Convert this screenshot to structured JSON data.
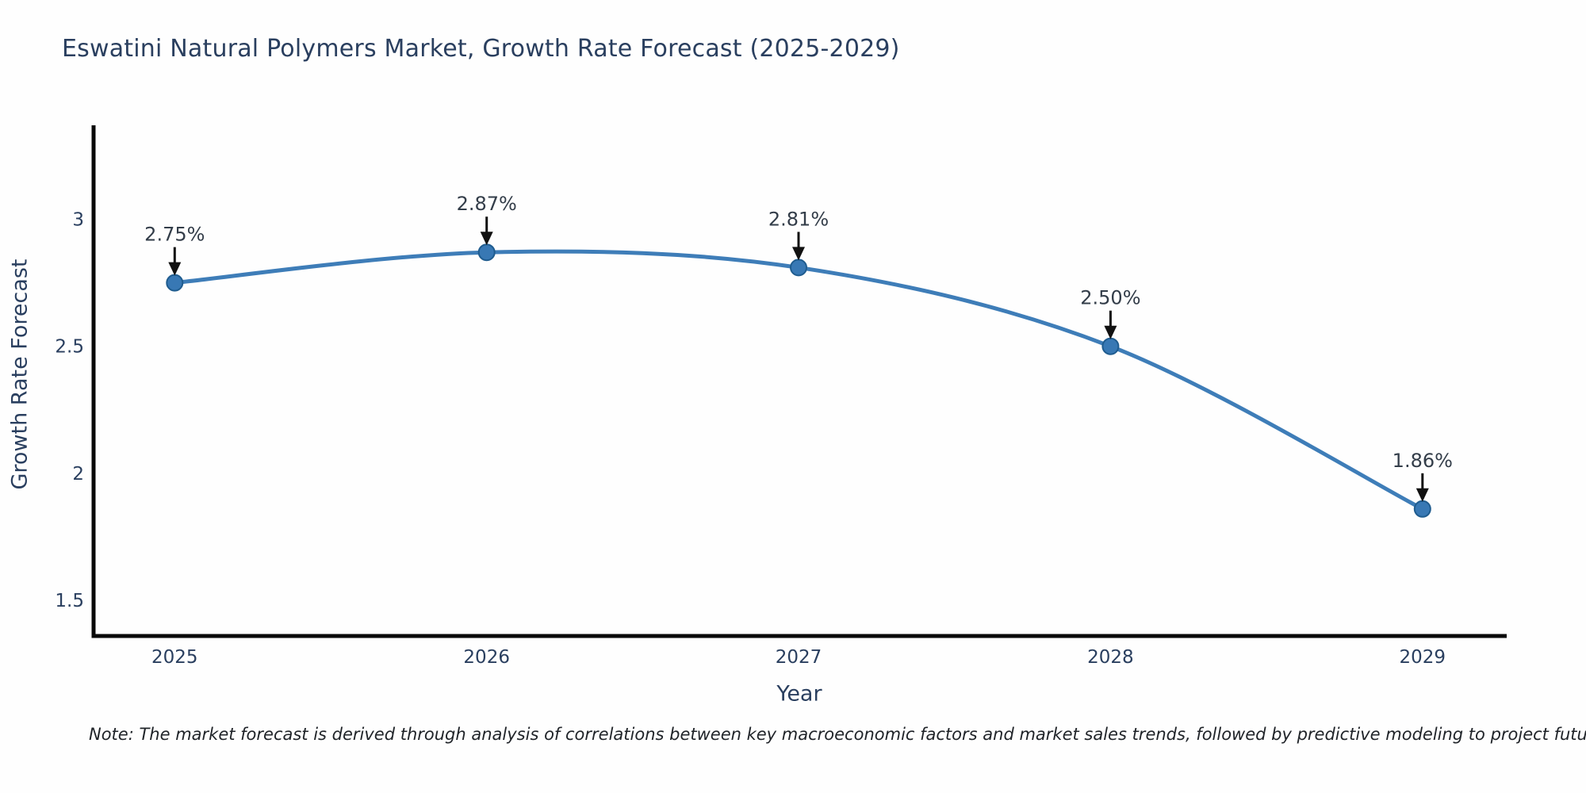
{
  "page": {
    "background": "#fefefe"
  },
  "chart_data": {
    "type": "line",
    "title": "Eswatini Natural Polymers Market, Growth Rate Forecast (2025-2029)",
    "xlabel": "Year",
    "ylabel": "Growth Rate Forecast",
    "x": [
      2025,
      2026,
      2027,
      2028,
      2029
    ],
    "xtick_labels": [
      "2025",
      "2026",
      "2027",
      "2028",
      "2029"
    ],
    "series": [
      {
        "name": "Growth Rate Forecast",
        "values": [
          2.75,
          2.87,
          2.81,
          2.5,
          1.86
        ]
      }
    ],
    "point_labels": [
      "2.75%",
      "2.87%",
      "2.81%",
      "2.50%",
      "1.86%"
    ],
    "ytick_values": [
      1.5,
      2,
      2.5,
      3
    ],
    "ytick_labels": [
      "1.5",
      "2",
      "2.5",
      "3"
    ],
    "xlim": [
      2024.74,
      2029.27
    ],
    "ylim": [
      1.36,
      3.37
    ],
    "line_shape": "spline",
    "grid": false,
    "legend": "none",
    "note": "Note: The market forecast is derived through analysis of correlations between key macroeconomic factors and market sales trends, followed by predictive modeling to project future sales",
    "colors": {
      "line": "#3e7db8",
      "marker_fill": "#3878b4",
      "marker_edge": "#1f5c8f",
      "axis": "#0a0a0a",
      "text": "#2a3f5f",
      "annotation_text": "#333d49",
      "annotation_arrow": "#111111"
    }
  }
}
